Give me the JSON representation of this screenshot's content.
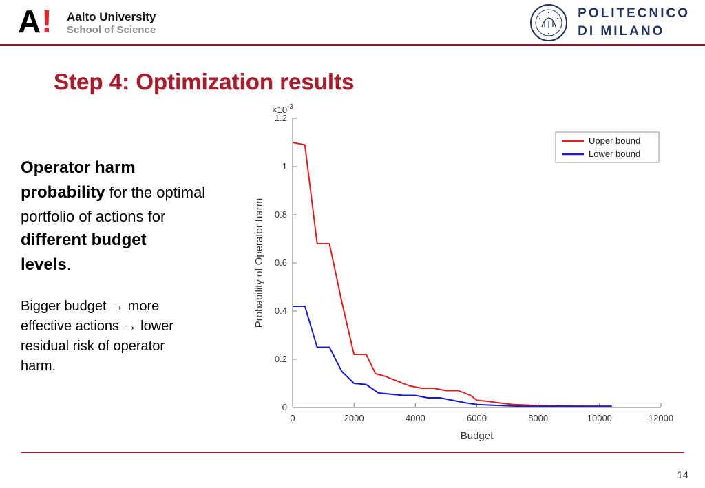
{
  "header": {
    "aalto": {
      "logo_letter": "A",
      "logo_bang": "!",
      "line1": "Aalto University",
      "line2": "School of Science"
    },
    "polimi": {
      "line1": "POLITECNICO",
      "line2": "DI MILANO"
    }
  },
  "title": "Step 4: Optimization results",
  "body_text": {
    "paragraph1": [
      {
        "text": "Operator harm\nprobability",
        "bold": true
      },
      {
        "text": " for the optimal\nportfolio of actions for\n",
        "bold": false
      },
      {
        "text": "different budget\nlevels",
        "bold": true
      },
      {
        "text": ".",
        "bold": false
      }
    ],
    "paragraph2": [
      {
        "text": "Bigger budget → more\neffective actions → lower\nresidual risk of operator\nharm.",
        "bold": false
      }
    ]
  },
  "page_number": "14",
  "colors": {
    "maroon_rule": "#8e1f2f",
    "title_red": "#a51e2d",
    "upper_bound": "#e01f1f",
    "lower_bound": "#1a1ad6",
    "axis": "#7a7a7a",
    "tick_text": "#3a3a3a"
  },
  "chart_data": {
    "type": "line",
    "title": "",
    "xlabel": "Budget",
    "ylabel": "Probability of Operator harm",
    "y_scale": {
      "base": "×10",
      "exp": "-3"
    },
    "xlim": [
      0,
      12000
    ],
    "ylim": [
      0,
      1.2
    ],
    "xticks": [
      0,
      2000,
      4000,
      6000,
      8000,
      10000,
      12000
    ],
    "yticks": [
      0,
      0.2,
      0.4,
      0.6,
      0.8,
      1,
      1.2
    ],
    "grid": false,
    "legend_position": "top-right",
    "series": [
      {
        "name": "Upper bound",
        "color": "#e01f1f",
        "x": [
          0,
          400,
          800,
          1200,
          1600,
          2000,
          2400,
          2700,
          3000,
          3400,
          3800,
          4200,
          4600,
          5000,
          5400,
          5800,
          6000,
          6400,
          6800,
          7200,
          7600,
          8000,
          8800,
          9600,
          10400
        ],
        "y": [
          1.1,
          1.09,
          0.68,
          0.68,
          0.44,
          0.22,
          0.22,
          0.14,
          0.13,
          0.11,
          0.09,
          0.08,
          0.08,
          0.07,
          0.07,
          0.05,
          0.03,
          0.025,
          0.018,
          0.012,
          0.01,
          0.008,
          0.006,
          0.005,
          0.005
        ]
      },
      {
        "name": "Lower bound",
        "color": "#1a1ad6",
        "x": [
          0,
          400,
          800,
          1200,
          1600,
          2000,
          2400,
          2800,
          3200,
          3600,
          4000,
          4400,
          4800,
          5200,
          5600,
          6000,
          6400,
          6800,
          7200,
          7600,
          8000,
          8800,
          9600,
          10400
        ],
        "y": [
          0.42,
          0.42,
          0.25,
          0.25,
          0.15,
          0.1,
          0.095,
          0.06,
          0.055,
          0.05,
          0.05,
          0.04,
          0.04,
          0.03,
          0.02,
          0.012,
          0.01,
          0.008,
          0.006,
          0.005,
          0.005,
          0.005,
          0.005,
          0.005
        ]
      }
    ]
  }
}
